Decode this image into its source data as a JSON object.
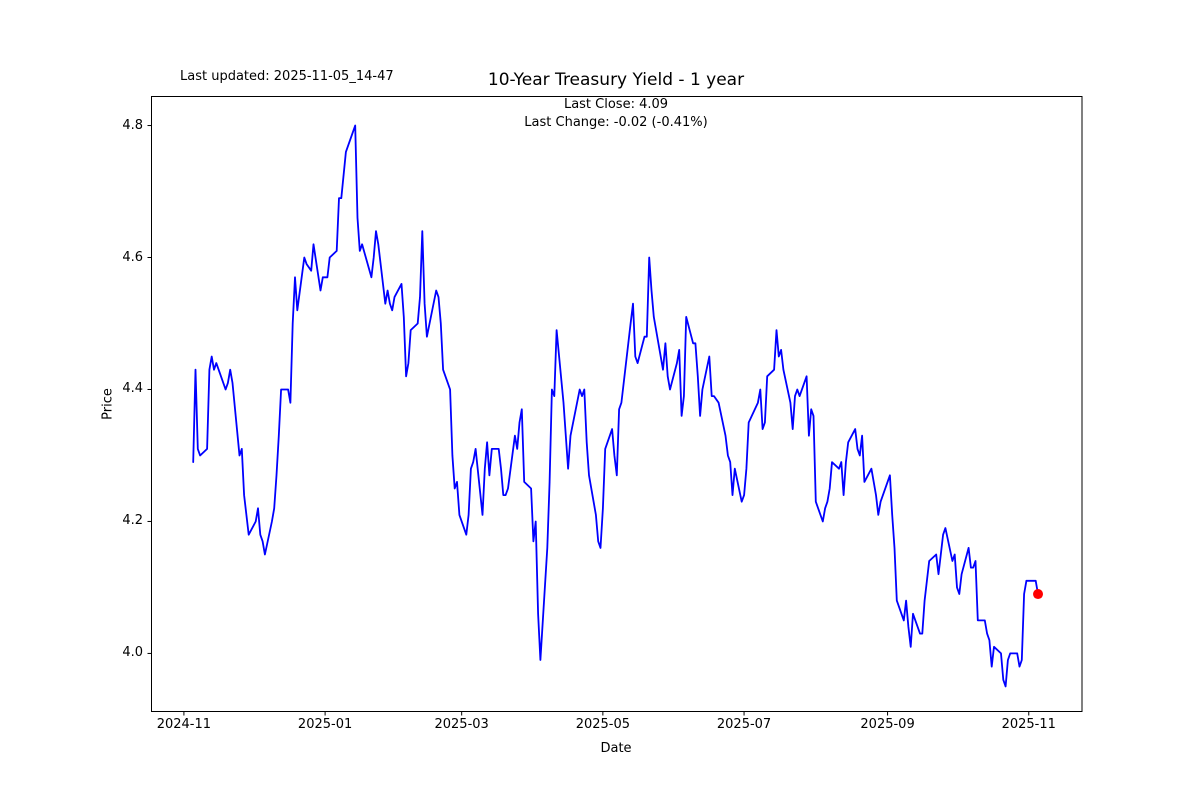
{
  "header": {
    "last_updated": "Last updated: 2025-11-05_14-47",
    "title": "10-Year Treasury Yield - 1 year",
    "subtitle_line1": "Last Close: 4.09",
    "subtitle_line2": "Last Change: -0.02 (-0.41%)"
  },
  "chart_data": {
    "type": "line",
    "title": "10-Year Treasury Yield - 1 year",
    "xlabel": "Date",
    "ylabel": "Price",
    "grid": false,
    "legend": "none",
    "line_color": "#0000ff",
    "marker_color": "#ff0000",
    "last_close": 4.09,
    "last_change": -0.02,
    "last_change_pct": "-0.41%",
    "ylim": [
      3.912,
      4.844
    ],
    "xlim": [
      "2024-10-18",
      "2025-11-24"
    ],
    "y_ticks": [
      4.0,
      4.2,
      4.4,
      4.6,
      4.8
    ],
    "x_ticks": [
      {
        "label": "2024-11",
        "date": "2024-11-01"
      },
      {
        "label": "2025-01",
        "date": "2025-01-01"
      },
      {
        "label": "2025-03",
        "date": "2025-03-01"
      },
      {
        "label": "2025-05",
        "date": "2025-05-01"
      },
      {
        "label": "2025-07",
        "date": "2025-07-01"
      },
      {
        "label": "2025-09",
        "date": "2025-09-01"
      },
      {
        "label": "2025-11",
        "date": "2025-11-01"
      }
    ],
    "marker": {
      "date": "2025-11-05",
      "value": 4.09
    },
    "series": [
      {
        "name": "10-Year Treasury Yield",
        "points": [
          [
            "2024-11-05",
            4.29
          ],
          [
            "2024-11-06",
            4.43
          ],
          [
            "2024-11-07",
            4.31
          ],
          [
            "2024-11-08",
            4.3
          ],
          [
            "2024-11-11",
            4.31
          ],
          [
            "2024-11-12",
            4.43
          ],
          [
            "2024-11-13",
            4.45
          ],
          [
            "2024-11-14",
            4.43
          ],
          [
            "2024-11-15",
            4.44
          ],
          [
            "2024-11-18",
            4.41
          ],
          [
            "2024-11-19",
            4.4
          ],
          [
            "2024-11-20",
            4.41
          ],
          [
            "2024-11-21",
            4.43
          ],
          [
            "2024-11-22",
            4.41
          ],
          [
            "2024-11-25",
            4.3
          ],
          [
            "2024-11-26",
            4.31
          ],
          [
            "2024-11-27",
            4.24
          ],
          [
            "2024-11-29",
            4.18
          ],
          [
            "2024-12-02",
            4.2
          ],
          [
            "2024-12-03",
            4.22
          ],
          [
            "2024-12-04",
            4.18
          ],
          [
            "2024-12-05",
            4.17
          ],
          [
            "2024-12-06",
            4.15
          ],
          [
            "2024-12-09",
            4.2
          ],
          [
            "2024-12-10",
            4.22
          ],
          [
            "2024-12-11",
            4.27
          ],
          [
            "2024-12-12",
            4.33
          ],
          [
            "2024-12-13",
            4.4
          ],
          [
            "2024-12-16",
            4.4
          ],
          [
            "2024-12-17",
            4.38
          ],
          [
            "2024-12-18",
            4.5
          ],
          [
            "2024-12-19",
            4.57
          ],
          [
            "2024-12-20",
            4.52
          ],
          [
            "2024-12-23",
            4.6
          ],
          [
            "2024-12-24",
            4.59
          ],
          [
            "2024-12-26",
            4.58
          ],
          [
            "2024-12-27",
            4.62
          ],
          [
            "2024-12-30",
            4.55
          ],
          [
            "2024-12-31",
            4.57
          ],
          [
            "2025-01-02",
            4.57
          ],
          [
            "2025-01-03",
            4.6
          ],
          [
            "2025-01-06",
            4.61
          ],
          [
            "2025-01-07",
            4.69
          ],
          [
            "2025-01-08",
            4.69
          ],
          [
            "2025-01-10",
            4.76
          ],
          [
            "2025-01-13",
            4.79
          ],
          [
            "2025-01-14",
            4.8
          ],
          [
            "2025-01-15",
            4.66
          ],
          [
            "2025-01-16",
            4.61
          ],
          [
            "2025-01-17",
            4.62
          ],
          [
            "2025-01-21",
            4.57
          ],
          [
            "2025-01-22",
            4.6
          ],
          [
            "2025-01-23",
            4.64
          ],
          [
            "2025-01-24",
            4.62
          ],
          [
            "2025-01-27",
            4.53
          ],
          [
            "2025-01-28",
            4.55
          ],
          [
            "2025-01-29",
            4.53
          ],
          [
            "2025-01-30",
            4.52
          ],
          [
            "2025-01-31",
            4.54
          ],
          [
            "2025-02-03",
            4.56
          ],
          [
            "2025-02-04",
            4.51
          ],
          [
            "2025-02-05",
            4.42
          ],
          [
            "2025-02-06",
            4.44
          ],
          [
            "2025-02-07",
            4.49
          ],
          [
            "2025-02-10",
            4.5
          ],
          [
            "2025-02-11",
            4.54
          ],
          [
            "2025-02-12",
            4.64
          ],
          [
            "2025-02-13",
            4.53
          ],
          [
            "2025-02-14",
            4.48
          ],
          [
            "2025-02-18",
            4.55
          ],
          [
            "2025-02-19",
            4.54
          ],
          [
            "2025-02-20",
            4.5
          ],
          [
            "2025-02-21",
            4.43
          ],
          [
            "2025-02-24",
            4.4
          ],
          [
            "2025-02-25",
            4.3
          ],
          [
            "2025-02-26",
            4.25
          ],
          [
            "2025-02-27",
            4.26
          ],
          [
            "2025-02-28",
            4.21
          ],
          [
            "2025-03-03",
            4.18
          ],
          [
            "2025-03-04",
            4.21
          ],
          [
            "2025-03-05",
            4.28
          ],
          [
            "2025-03-06",
            4.29
          ],
          [
            "2025-03-07",
            4.31
          ],
          [
            "2025-03-10",
            4.21
          ],
          [
            "2025-03-11",
            4.28
          ],
          [
            "2025-03-12",
            4.32
          ],
          [
            "2025-03-13",
            4.27
          ],
          [
            "2025-03-14",
            4.31
          ],
          [
            "2025-03-17",
            4.31
          ],
          [
            "2025-03-18",
            4.28
          ],
          [
            "2025-03-19",
            4.24
          ],
          [
            "2025-03-20",
            4.24
          ],
          [
            "2025-03-21",
            4.25
          ],
          [
            "2025-03-24",
            4.33
          ],
          [
            "2025-03-25",
            4.31
          ],
          [
            "2025-03-26",
            4.35
          ],
          [
            "2025-03-27",
            4.37
          ],
          [
            "2025-03-28",
            4.26
          ],
          [
            "2025-03-31",
            4.25
          ],
          [
            "2025-04-01",
            4.17
          ],
          [
            "2025-04-02",
            4.2
          ],
          [
            "2025-04-03",
            4.06
          ],
          [
            "2025-04-04",
            3.99
          ],
          [
            "2025-04-07",
            4.16
          ],
          [
            "2025-04-08",
            4.26
          ],
          [
            "2025-04-09",
            4.4
          ],
          [
            "2025-04-10",
            4.39
          ],
          [
            "2025-04-11",
            4.49
          ],
          [
            "2025-04-14",
            4.38
          ],
          [
            "2025-04-15",
            4.33
          ],
          [
            "2025-04-16",
            4.28
          ],
          [
            "2025-04-17",
            4.33
          ],
          [
            "2025-04-21",
            4.4
          ],
          [
            "2025-04-22",
            4.39
          ],
          [
            "2025-04-23",
            4.4
          ],
          [
            "2025-04-24",
            4.32
          ],
          [
            "2025-04-25",
            4.27
          ],
          [
            "2025-04-28",
            4.21
          ],
          [
            "2025-04-29",
            4.17
          ],
          [
            "2025-04-30",
            4.16
          ],
          [
            "2025-05-01",
            4.22
          ],
          [
            "2025-05-02",
            4.31
          ],
          [
            "2025-05-05",
            4.34
          ],
          [
            "2025-05-06",
            4.3
          ],
          [
            "2025-05-07",
            4.27
          ],
          [
            "2025-05-08",
            4.37
          ],
          [
            "2025-05-09",
            4.38
          ],
          [
            "2025-05-12",
            4.47
          ],
          [
            "2025-05-13",
            4.5
          ],
          [
            "2025-05-14",
            4.53
          ],
          [
            "2025-05-15",
            4.45
          ],
          [
            "2025-05-16",
            4.44
          ],
          [
            "2025-05-19",
            4.48
          ],
          [
            "2025-05-20",
            4.48
          ],
          [
            "2025-05-21",
            4.6
          ],
          [
            "2025-05-22",
            4.55
          ],
          [
            "2025-05-23",
            4.51
          ],
          [
            "2025-05-27",
            4.43
          ],
          [
            "2025-05-28",
            4.47
          ],
          [
            "2025-05-29",
            4.42
          ],
          [
            "2025-05-30",
            4.4
          ],
          [
            "2025-06-02",
            4.44
          ],
          [
            "2025-06-03",
            4.46
          ],
          [
            "2025-06-04",
            4.36
          ],
          [
            "2025-06-05",
            4.39
          ],
          [
            "2025-06-06",
            4.51
          ],
          [
            "2025-06-09",
            4.47
          ],
          [
            "2025-06-10",
            4.47
          ],
          [
            "2025-06-11",
            4.42
          ],
          [
            "2025-06-12",
            4.36
          ],
          [
            "2025-06-13",
            4.4
          ],
          [
            "2025-06-16",
            4.45
          ],
          [
            "2025-06-17",
            4.39
          ],
          [
            "2025-06-18",
            4.39
          ],
          [
            "2025-06-20",
            4.38
          ],
          [
            "2025-06-23",
            4.33
          ],
          [
            "2025-06-24",
            4.3
          ],
          [
            "2025-06-25",
            4.29
          ],
          [
            "2025-06-26",
            4.24
          ],
          [
            "2025-06-27",
            4.28
          ],
          [
            "2025-06-30",
            4.23
          ],
          [
            "2025-07-01",
            4.24
          ],
          [
            "2025-07-02",
            4.28
          ],
          [
            "2025-07-03",
            4.35
          ],
          [
            "2025-07-07",
            4.38
          ],
          [
            "2025-07-08",
            4.4
          ],
          [
            "2025-07-09",
            4.34
          ],
          [
            "2025-07-10",
            4.35
          ],
          [
            "2025-07-11",
            4.42
          ],
          [
            "2025-07-14",
            4.43
          ],
          [
            "2025-07-15",
            4.49
          ],
          [
            "2025-07-16",
            4.45
          ],
          [
            "2025-07-17",
            4.46
          ],
          [
            "2025-07-18",
            4.43
          ],
          [
            "2025-07-21",
            4.38
          ],
          [
            "2025-07-22",
            4.34
          ],
          [
            "2025-07-23",
            4.39
          ],
          [
            "2025-07-24",
            4.4
          ],
          [
            "2025-07-25",
            4.39
          ],
          [
            "2025-07-28",
            4.42
          ],
          [
            "2025-07-29",
            4.33
          ],
          [
            "2025-07-30",
            4.37
          ],
          [
            "2025-07-31",
            4.36
          ],
          [
            "2025-08-01",
            4.23
          ],
          [
            "2025-08-04",
            4.2
          ],
          [
            "2025-08-05",
            4.22
          ],
          [
            "2025-08-06",
            4.23
          ],
          [
            "2025-08-07",
            4.25
          ],
          [
            "2025-08-08",
            4.29
          ],
          [
            "2025-08-11",
            4.28
          ],
          [
            "2025-08-12",
            4.29
          ],
          [
            "2025-08-13",
            4.24
          ],
          [
            "2025-08-14",
            4.29
          ],
          [
            "2025-08-15",
            4.32
          ],
          [
            "2025-08-18",
            4.34
          ],
          [
            "2025-08-19",
            4.31
          ],
          [
            "2025-08-20",
            4.3
          ],
          [
            "2025-08-21",
            4.33
          ],
          [
            "2025-08-22",
            4.26
          ],
          [
            "2025-08-25",
            4.28
          ],
          [
            "2025-08-26",
            4.26
          ],
          [
            "2025-08-27",
            4.24
          ],
          [
            "2025-08-28",
            4.21
          ],
          [
            "2025-08-29",
            4.23
          ],
          [
            "2025-09-02",
            4.27
          ],
          [
            "2025-09-03",
            4.21
          ],
          [
            "2025-09-04",
            4.16
          ],
          [
            "2025-09-05",
            4.08
          ],
          [
            "2025-09-08",
            4.05
          ],
          [
            "2025-09-09",
            4.08
          ],
          [
            "2025-09-10",
            4.04
          ],
          [
            "2025-09-11",
            4.01
          ],
          [
            "2025-09-12",
            4.06
          ],
          [
            "2025-09-15",
            4.03
          ],
          [
            "2025-09-16",
            4.03
          ],
          [
            "2025-09-17",
            4.08
          ],
          [
            "2025-09-18",
            4.11
          ],
          [
            "2025-09-19",
            4.14
          ],
          [
            "2025-09-22",
            4.15
          ],
          [
            "2025-09-23",
            4.12
          ],
          [
            "2025-09-24",
            4.15
          ],
          [
            "2025-09-25",
            4.18
          ],
          [
            "2025-09-26",
            4.19
          ],
          [
            "2025-09-29",
            4.14
          ],
          [
            "2025-09-30",
            4.15
          ],
          [
            "2025-10-01",
            4.1
          ],
          [
            "2025-10-02",
            4.09
          ],
          [
            "2025-10-03",
            4.12
          ],
          [
            "2025-10-06",
            4.16
          ],
          [
            "2025-10-07",
            4.13
          ],
          [
            "2025-10-08",
            4.13
          ],
          [
            "2025-10-09",
            4.14
          ],
          [
            "2025-10-10",
            4.05
          ],
          [
            "2025-10-13",
            4.05
          ],
          [
            "2025-10-14",
            4.03
          ],
          [
            "2025-10-15",
            4.02
          ],
          [
            "2025-10-16",
            3.98
          ],
          [
            "2025-10-17",
            4.01
          ],
          [
            "2025-10-20",
            4.0
          ],
          [
            "2025-10-21",
            3.96
          ],
          [
            "2025-10-22",
            3.95
          ],
          [
            "2025-10-23",
            3.99
          ],
          [
            "2025-10-24",
            4.0
          ],
          [
            "2025-10-27",
            4.0
          ],
          [
            "2025-10-28",
            3.98
          ],
          [
            "2025-10-29",
            3.99
          ],
          [
            "2025-10-30",
            4.09
          ],
          [
            "2025-10-31",
            4.11
          ],
          [
            "2025-11-03",
            4.11
          ],
          [
            "2025-11-04",
            4.11
          ],
          [
            "2025-11-05",
            4.09
          ]
        ]
      }
    ]
  }
}
